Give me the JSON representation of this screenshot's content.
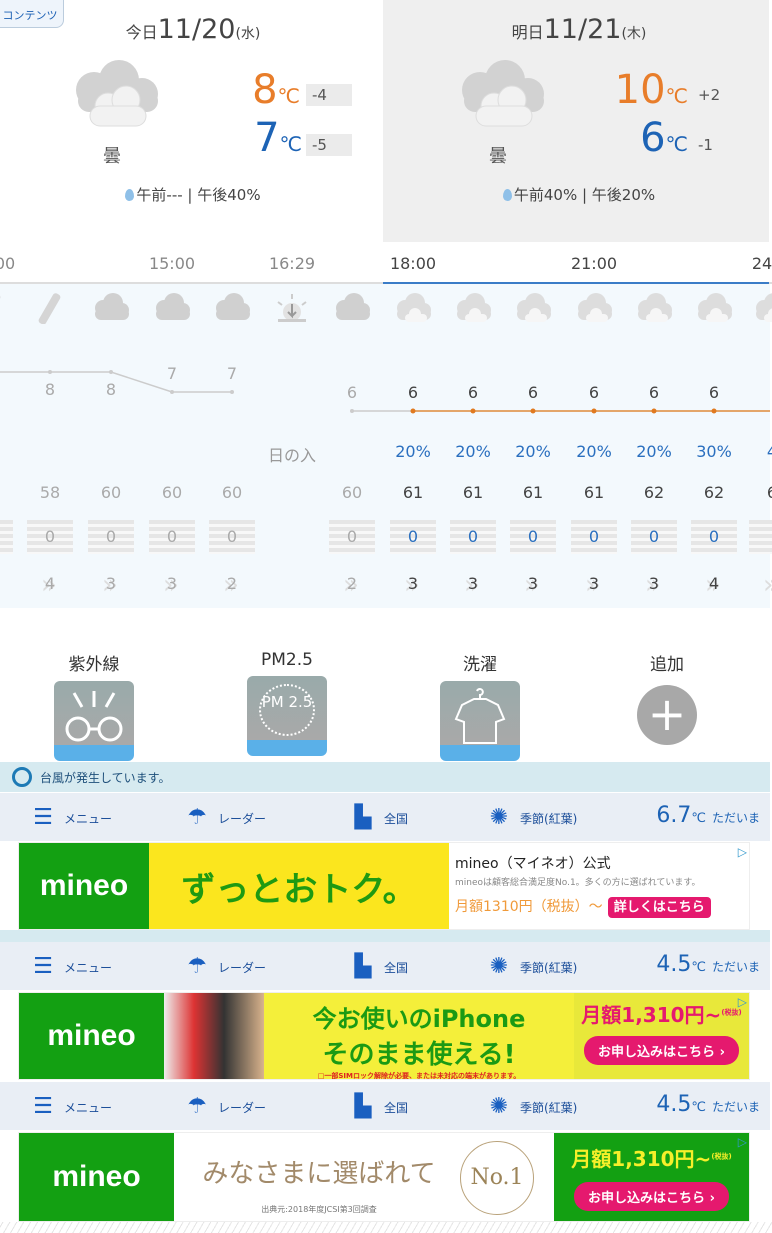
{
  "contents_button": "コンテンツ",
  "days": [
    {
      "prefix": "今日",
      "date": "11/20",
      "weekday": "(水)",
      "condition": "曇",
      "icon": "cloud-icon",
      "max": "8",
      "min": "7",
      "unit": "℃",
      "max_diff": "-4",
      "min_diff": "-5",
      "rain": "午前--- | 午後40%"
    },
    {
      "prefix": "明日",
      "date": "11/21",
      "weekday": "(木)",
      "condition": "曇",
      "icon": "cloud-icon",
      "max": "10",
      "min": "6",
      "unit": "℃",
      "max_diff": "+2",
      "min_diff": "-1",
      "rain": "午前40% | 午後20%"
    }
  ],
  "time_labels": [
    {
      "t": "00",
      "x": "c0"
    },
    {
      "t": "15:00"
    },
    {
      "t": "16:29"
    },
    {
      "t": "18:00"
    },
    {
      "t": "21:00"
    },
    {
      "t": "24"
    }
  ],
  "hourly": [
    {
      "icon": "umbrella-icon",
      "temp": "",
      "precip": "",
      "humidity": "8",
      "rain": "",
      "wind": ""
    },
    {
      "icon": "umbrella-icon",
      "temp": "8",
      "precip": "",
      "humidity": "58",
      "rain": "0",
      "wind": "4"
    },
    {
      "icon": "cloud-icon",
      "temp": "8",
      "precip": "",
      "humidity": "60",
      "rain": "0",
      "wind": "3"
    },
    {
      "icon": "cloud-icon",
      "temp": "7",
      "precip": "",
      "humidity": "60",
      "rain": "0",
      "wind": "3"
    },
    {
      "icon": "cloud-icon",
      "temp": "7",
      "precip": "",
      "humidity": "60",
      "rain": "0",
      "wind": "2"
    },
    {
      "icon": "sunset-icon",
      "sunset_label": "日の入"
    },
    {
      "icon": "cloud-icon",
      "temp": "6",
      "precip": "",
      "humidity": "60",
      "rain": "0",
      "wind": "2"
    },
    {
      "icon": "cloud-icon",
      "temp": "6",
      "precip": "20%",
      "humidity": "61",
      "rain": "0",
      "wind": "3"
    },
    {
      "icon": "cloud-icon",
      "temp": "6",
      "precip": "20%",
      "humidity": "61",
      "rain": "0",
      "wind": "3"
    },
    {
      "icon": "cloud-icon",
      "temp": "6",
      "precip": "20%",
      "humidity": "61",
      "rain": "0",
      "wind": "3"
    },
    {
      "icon": "cloud-icon",
      "temp": "6",
      "precip": "20%",
      "humidity": "61",
      "rain": "0",
      "wind": "3"
    },
    {
      "icon": "cloud-icon",
      "temp": "6",
      "precip": "20%",
      "humidity": "62",
      "rain": "0",
      "wind": "3"
    },
    {
      "icon": "cloud-icon",
      "temp": "6",
      "precip": "30%",
      "humidity": "62",
      "rain": "0",
      "wind": "4"
    },
    {
      "icon": "cloud-icon",
      "temp": "",
      "precip": "4",
      "humidity": "6",
      "rain": "",
      "wind": ""
    }
  ],
  "tools": [
    {
      "label": "紫外線",
      "icon": "uv-glasses-icon"
    },
    {
      "label": "PM2.5",
      "icon": "pm25-icon",
      "text": "PM 2.5"
    },
    {
      "label": "洗濯",
      "icon": "laundry-shirt-icon"
    },
    {
      "label": "追加",
      "icon": "plus-icon",
      "text": "+"
    }
  ],
  "typhoon": "台風が発生しています。",
  "nav": {
    "menu": "メニュー",
    "radar": "レーダー",
    "national": "全国",
    "season": "季節(紅葉)",
    "now_label": "ただいま",
    "unit": "℃"
  },
  "nav_temps": [
    "6.7",
    "4.5",
    "4.5"
  ],
  "ads": [
    {
      "logo": "mineo",
      "headline": "ずっとおトク。",
      "title": "mineo（マイネオ）公式",
      "desc": "mineoは顧客総合満足度No.1。多くの方に選ばれています。",
      "price": "月額1310円（税抜）～",
      "cta": "詳しくはこちら"
    },
    {
      "logo": "mineo",
      "line1": "今お使いのiPhone",
      "line2": "そのまま使える!",
      "note": "□一部SIMロック解除が必要、または未対応の端末があります。",
      "price": "月額1,310円~",
      "tax": "(税抜)",
      "cta": "お申し込みはこちら ›"
    },
    {
      "logo": "mineo",
      "headline": "みなさまに選ばれて",
      "badge": "No.1",
      "source": "出典元:2018年度JCSI第3回調査",
      "price": "月額1,310円~",
      "tax": "(税抜)",
      "cta": "お申し込みはこちら ›"
    }
  ],
  "colors": {
    "max_temp": "#e87d2a",
    "min_temp": "#1d63b5",
    "accent": "#3a7cc7",
    "mineo_green": "#13a012",
    "cta_pink": "#e5196e"
  }
}
